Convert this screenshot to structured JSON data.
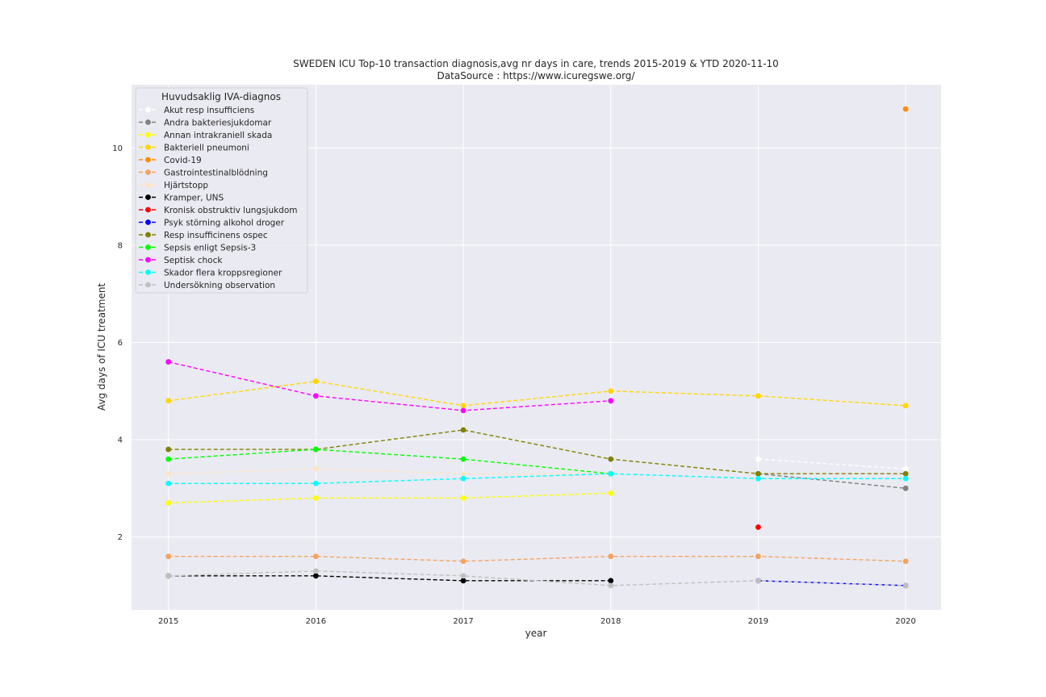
{
  "chart_data": {
    "type": "line",
    "title": "SWEDEN ICU Top-10 transaction diagnosis,avg nr days in care, trends 2015-2019 & YTD 2020-11-10",
    "subtitle": "DataSource : https://www.icuregswe.org/",
    "xlabel": "year",
    "ylabel": "Avg days of ICU treatment",
    "xlim": [
      2014.75,
      2020.24
    ],
    "ylim": [
      0.5,
      11.3
    ],
    "x_ticks": [
      2015,
      2016,
      2017,
      2018,
      2019,
      2020
    ],
    "y_ticks": [
      2,
      4,
      6,
      8,
      10
    ],
    "grid": true,
    "background": "#eaeaf2",
    "legend": {
      "title": "Huvudsaklig IVA-diagnos",
      "placement": "upper-left"
    },
    "x": [
      2015,
      2016,
      2017,
      2018,
      2019,
      2020
    ],
    "series": [
      {
        "name": "Akut resp insufficiens",
        "color": "#ffffff",
        "values": [
          null,
          null,
          null,
          null,
          3.6,
          3.4
        ]
      },
      {
        "name": "Andra bakteriesjukdomar",
        "color": "#808080",
        "values": [
          null,
          null,
          null,
          null,
          3.3,
          3.0
        ]
      },
      {
        "name": "Annan intrakraniell skada",
        "color": "#ffff00",
        "values": [
          2.7,
          2.8,
          2.8,
          2.9,
          null,
          null
        ]
      },
      {
        "name": "Bakteriell pneumoni",
        "color": "#ffd700",
        "values": [
          4.8,
          5.2,
          4.7,
          5.0,
          4.9,
          4.7
        ]
      },
      {
        "name": "Covid-19",
        "color": "#ff8c00",
        "values": [
          null,
          null,
          null,
          null,
          null,
          10.8
        ]
      },
      {
        "name": "Gastrointestinalblödning",
        "color": "#f4a460",
        "values": [
          1.6,
          1.6,
          1.5,
          1.6,
          1.6,
          1.5
        ]
      },
      {
        "name": "Hjärtstopp",
        "color": "#ffe4c4",
        "values": [
          3.3,
          3.4,
          3.3,
          3.3,
          null,
          null
        ]
      },
      {
        "name": "Kramper, UNS",
        "color": "#000000",
        "values": [
          1.2,
          1.2,
          1.1,
          1.1,
          null,
          null
        ]
      },
      {
        "name": "Kronisk obstruktiv lungsjukdom",
        "color": "#ff0000",
        "values": [
          null,
          null,
          null,
          null,
          2.2,
          null
        ]
      },
      {
        "name": "Psyk störning alkohol droger",
        "color": "#0000ff",
        "values": [
          null,
          null,
          null,
          null,
          1.1,
          1.0
        ]
      },
      {
        "name": "Resp insufficinens ospec",
        "color": "#808000",
        "values": [
          3.8,
          3.8,
          4.2,
          3.6,
          3.3,
          3.3
        ]
      },
      {
        "name": "Sepsis enligt Sepsis-3",
        "color": "#00ff00",
        "values": [
          3.6,
          3.8,
          3.6,
          3.3,
          null,
          null
        ]
      },
      {
        "name": "Septisk chock",
        "color": "#ff00ff",
        "values": [
          5.6,
          4.9,
          4.6,
          4.8,
          null,
          null
        ]
      },
      {
        "name": "Skador flera kroppsregioner",
        "color": "#00ffff",
        "values": [
          3.1,
          3.1,
          3.2,
          3.3,
          3.2,
          3.2
        ]
      },
      {
        "name": "Undersökning observation",
        "color": "#c0c0c0",
        "values": [
          1.2,
          1.3,
          1.2,
          1.0,
          1.1,
          1.0
        ]
      }
    ]
  }
}
